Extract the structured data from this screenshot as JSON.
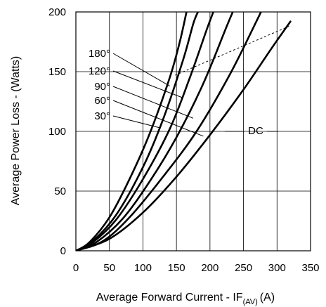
{
  "chart_data": {
    "type": "line",
    "title": "",
    "xlabel": "Average Forward Current - IF",
    "xlabel_sub": "(AV)",
    "xlabel_unit": "(A)",
    "ylabel": "Average Power Loss - (Watts)",
    "xlim": [
      0,
      350
    ],
    "ylim": [
      0,
      200
    ],
    "x_ticks": [
      0,
      50,
      100,
      150,
      200,
      250,
      300,
      350
    ],
    "y_ticks": [
      0,
      50,
      100,
      150,
      200
    ],
    "grid": true,
    "legend": "none",
    "series": [
      {
        "name": "30°",
        "points": [
          [
            0,
            0
          ],
          [
            20,
            7
          ],
          [
            50,
            28
          ],
          [
            80,
            60
          ],
          [
            110,
            98
          ],
          [
            140,
            145
          ],
          [
            155,
            175
          ],
          [
            165,
            200
          ]
        ]
      },
      {
        "name": "60°",
        "points": [
          [
            0,
            0
          ],
          [
            25,
            8
          ],
          [
            60,
            30
          ],
          [
            100,
            70
          ],
          [
            130,
            110
          ],
          [
            160,
            160
          ],
          [
            175,
            190
          ],
          [
            182,
            200
          ]
        ]
      },
      {
        "name": "90°",
        "points": [
          [
            0,
            0
          ],
          [
            25,
            7
          ],
          [
            60,
            26
          ],
          [
            100,
            60
          ],
          [
            140,
            102
          ],
          [
            170,
            145
          ],
          [
            195,
            185
          ],
          [
            205,
            200
          ]
        ]
      },
      {
        "name": "120°",
        "points": [
          [
            0,
            0
          ],
          [
            30,
            7
          ],
          [
            70,
            27
          ],
          [
            110,
            58
          ],
          [
            150,
            95
          ],
          [
            190,
            140
          ],
          [
            225,
            188
          ],
          [
            234,
            200
          ]
        ]
      },
      {
        "name": "180°",
        "points": [
          [
            0,
            0
          ],
          [
            40,
            8
          ],
          [
            80,
            28
          ],
          [
            130,
            62
          ],
          [
            180,
            100
          ],
          [
            230,
            148
          ],
          [
            270,
            193
          ],
          [
            276,
            200
          ]
        ]
      },
      {
        "name": "DC",
        "points": [
          [
            0,
            0
          ],
          [
            50,
            10
          ],
          [
            100,
            32
          ],
          [
            150,
            62
          ],
          [
            200,
            97
          ],
          [
            250,
            135
          ],
          [
            290,
            168
          ],
          [
            320,
            192
          ]
        ]
      }
    ],
    "annotations": {
      "angle_labels": [
        "180°",
        "120°",
        "90°",
        "60°",
        "30°"
      ],
      "dc_label": "DC",
      "leader_targets": [
        [
          140,
          138
        ],
        [
          160,
          128
        ],
        [
          175,
          111
        ],
        [
          190,
          96
        ],
        [
          125,
          103
        ]
      ],
      "dashed_limit": [
        [
          148,
          147
        ],
        [
          318,
          188
        ]
      ]
    }
  }
}
